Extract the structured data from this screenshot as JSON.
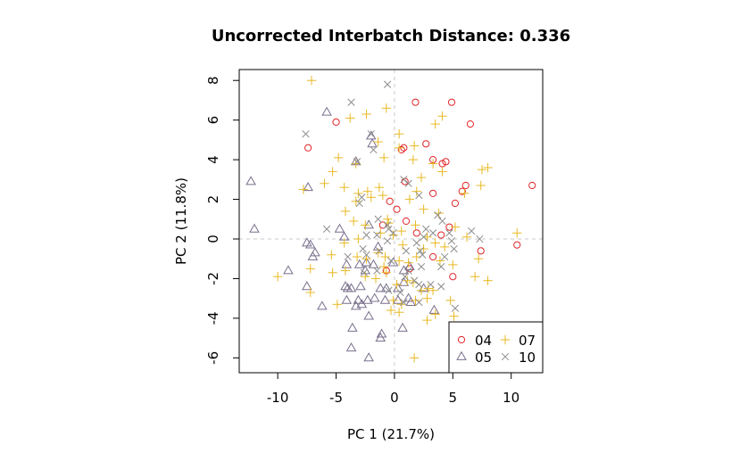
{
  "chart_data": {
    "type": "scatter",
    "title": "Uncorrected Interbatch Distance: 0.336",
    "xlabel": "PC 1 (21.7%)",
    "ylabel": "PC 2 (11.8%)",
    "xlim": [
      -13.3,
      12.7
    ],
    "ylim": [
      -6.75,
      8.55
    ],
    "xticks": [
      -10,
      -5,
      0,
      5,
      10
    ],
    "xtick_labels": [
      "-10",
      "-5",
      "0",
      "5",
      "10"
    ],
    "yticks": [
      -6,
      -4,
      -2,
      0,
      2,
      4,
      6,
      8
    ],
    "ytick_labels": [
      "-6",
      "-4",
      "-2",
      "0",
      "2",
      "4",
      "6",
      "8"
    ],
    "reference_lines": {
      "x": 0,
      "y": 0,
      "style": "dashed",
      "color": "#c8c8c8"
    },
    "legend_position": "bottom-right",
    "series": [
      {
        "name": "04",
        "marker": "circle",
        "color": "#e0242a",
        "points": [
          [
            1.8,
            6.9
          ],
          [
            4.9,
            6.9
          ],
          [
            6.5,
            5.8
          ],
          [
            -5.0,
            5.9
          ],
          [
            -7.4,
            4.6
          ],
          [
            2.7,
            4.8
          ],
          [
            0.6,
            4.5
          ],
          [
            0.8,
            4.6
          ],
          [
            3.3,
            4.0
          ],
          [
            4.1,
            3.8
          ],
          [
            4.4,
            3.9
          ],
          [
            0.9,
            2.9
          ],
          [
            3.3,
            2.3
          ],
          [
            6.1,
            2.7
          ],
          [
            5.2,
            1.8
          ],
          [
            5.8,
            2.4
          ],
          [
            11.8,
            2.7
          ],
          [
            -0.4,
            1.9
          ],
          [
            0.2,
            1.5
          ],
          [
            1.0,
            0.9
          ],
          [
            -1.0,
            0.7
          ],
          [
            4.7,
            0.6
          ],
          [
            1.9,
            0.3
          ],
          [
            4.0,
            0.2
          ],
          [
            10.5,
            -0.3
          ],
          [
            7.4,
            -0.6
          ],
          [
            3.3,
            -0.9
          ],
          [
            1.3,
            -1.5
          ],
          [
            5.0,
            -1.9
          ],
          [
            -0.7,
            -1.6
          ]
        ]
      },
      {
        "name": "05",
        "marker": "triangle",
        "color": "#7a6f8d",
        "points": [
          [
            -5.8,
            6.4
          ],
          [
            -12.3,
            2.9
          ],
          [
            -12.0,
            0.5
          ],
          [
            -2.0,
            5.2
          ],
          [
            -1.9,
            4.8
          ],
          [
            -3.3,
            3.9
          ],
          [
            -7.4,
            2.6
          ],
          [
            -2.2,
            0.7
          ],
          [
            -4.7,
            0.5
          ],
          [
            -4.3,
            0.1
          ],
          [
            -7.5,
            -0.2
          ],
          [
            -7.2,
            -0.3
          ],
          [
            -6.8,
            -0.7
          ],
          [
            -7.0,
            -0.9
          ],
          [
            -1.4,
            -0.4
          ],
          [
            -9.1,
            -1.6
          ],
          [
            -4.1,
            -1.3
          ],
          [
            -2.4,
            -1.2
          ],
          [
            -3.0,
            -1.3
          ],
          [
            -1.8,
            -1.3
          ],
          [
            -2.5,
            -1.6
          ],
          [
            -0.1,
            -1.2
          ],
          [
            0.8,
            -1.6
          ],
          [
            1.3,
            -1.4
          ],
          [
            -7.5,
            -2.4
          ],
          [
            -4.2,
            -2.4
          ],
          [
            -4.0,
            -2.5
          ],
          [
            -3.7,
            -2.5
          ],
          [
            -2.9,
            -2.4
          ],
          [
            -1.2,
            -2.5
          ],
          [
            -0.7,
            -2.5
          ],
          [
            0.3,
            -2.5
          ],
          [
            0.8,
            -2.2
          ],
          [
            2.5,
            -2.5
          ],
          [
            -4.1,
            -3.1
          ],
          [
            -3.1,
            -3.1
          ],
          [
            -2.3,
            -3.1
          ],
          [
            -1.7,
            -3.0
          ],
          [
            -0.8,
            -3.1
          ],
          [
            0.3,
            -3.1
          ],
          [
            1.2,
            -3.0
          ],
          [
            -6.2,
            -3.4
          ],
          [
            -3.3,
            -3.4
          ],
          [
            1.4,
            -3.2
          ],
          [
            3.4,
            -3.6
          ],
          [
            -2.8,
            -3.3
          ],
          [
            -2.2,
            -3.9
          ],
          [
            -1.1,
            -4.8
          ],
          [
            -1.2,
            -5.0
          ],
          [
            0.7,
            -4.5
          ],
          [
            -3.6,
            -4.5
          ],
          [
            -3.7,
            -5.5
          ],
          [
            -2.2,
            -6.0
          ]
        ]
      },
      {
        "name": "07",
        "marker": "plus",
        "color": "#e8b923",
        "points": [
          [
            -7.1,
            8.0
          ],
          [
            -3.8,
            6.1
          ],
          [
            -2.4,
            6.3
          ],
          [
            -0.7,
            6.6
          ],
          [
            4.1,
            6.2
          ],
          [
            3.5,
            5.8
          ],
          [
            0.4,
            5.3
          ],
          [
            -1.4,
            4.9
          ],
          [
            0.4,
            4.6
          ],
          [
            1.7,
            4.7
          ],
          [
            3.3,
            3.8
          ],
          [
            -0.9,
            4.1
          ],
          [
            -4.8,
            4.1
          ],
          [
            -3.3,
            3.8
          ],
          [
            1.6,
            4.0
          ],
          [
            -5.3,
            3.4
          ],
          [
            -6.0,
            2.8
          ],
          [
            -7.8,
            2.5
          ],
          [
            -4.3,
            2.6
          ],
          [
            -3.1,
            2.3
          ],
          [
            -2.3,
            2.4
          ],
          [
            -1.3,
            2.6
          ],
          [
            1.9,
            2.4
          ],
          [
            2.3,
            3.1
          ],
          [
            4.1,
            3.4
          ],
          [
            7.5,
            3.5
          ],
          [
            8.0,
            3.6
          ],
          [
            7.4,
            2.7
          ],
          [
            6.0,
            2.3
          ],
          [
            -4.2,
            1.4
          ],
          [
            -3.3,
            1.9
          ],
          [
            -2.0,
            2.1
          ],
          [
            -1.0,
            2.2
          ],
          [
            1.3,
            2.0
          ],
          [
            2.5,
            1.5
          ],
          [
            3.8,
            1.3
          ],
          [
            -0.6,
            1.0
          ],
          [
            -0.5,
            0.8
          ],
          [
            -3.5,
            0.9
          ],
          [
            -2.5,
            0.7
          ],
          [
            -1.2,
            0.3
          ],
          [
            0.6,
            0.4
          ],
          [
            1.8,
            0.7
          ],
          [
            3.5,
            -0.2
          ],
          [
            2.8,
            0.1
          ],
          [
            5.2,
            0.6
          ],
          [
            6.2,
            0.1
          ],
          [
            10.5,
            0.3
          ],
          [
            -0.1,
            0.2
          ],
          [
            -4.3,
            -0.2
          ],
          [
            -3.1,
            0.0
          ],
          [
            -1.4,
            -0.7
          ],
          [
            -0.8,
            -0.9
          ],
          [
            0.7,
            -0.3
          ],
          [
            1.9,
            -0.9
          ],
          [
            2.5,
            -0.5
          ],
          [
            4.3,
            -0.4
          ],
          [
            -5.4,
            -0.8
          ],
          [
            -3.2,
            -0.9
          ],
          [
            -2.4,
            -1.0
          ],
          [
            -0.9,
            -1.4
          ],
          [
            -0.7,
            -1.7
          ],
          [
            0.4,
            -1.1
          ],
          [
            1.2,
            -1.2
          ],
          [
            3.9,
            -1.1
          ],
          [
            5.0,
            -1.3
          ],
          [
            7.2,
            -1.0
          ],
          [
            -10.0,
            -1.9
          ],
          [
            -7.2,
            -1.5
          ],
          [
            -5.3,
            -1.7
          ],
          [
            -4.2,
            -1.6
          ],
          [
            -2.5,
            -1.9
          ],
          [
            -1.6,
            -2.0
          ],
          [
            0.2,
            -2.3
          ],
          [
            1.1,
            -2.1
          ],
          [
            1.6,
            -2.2
          ],
          [
            2.3,
            -2.6
          ],
          [
            2.9,
            -2.5
          ],
          [
            3.3,
            -2.6
          ],
          [
            2.8,
            -3.0
          ],
          [
            4.8,
            -3.1
          ],
          [
            6.9,
            -1.9
          ],
          [
            8.0,
            -2.1
          ],
          [
            -7.2,
            -2.7
          ],
          [
            -4.9,
            -3.3
          ],
          [
            -0.1,
            -3.1
          ],
          [
            0.6,
            -3.3
          ],
          [
            -0.3,
            -3.6
          ],
          [
            0.4,
            -3.7
          ],
          [
            1.8,
            -3.1
          ],
          [
            2.8,
            -4.1
          ],
          [
            3.5,
            -3.8
          ],
          [
            5.1,
            -3.9
          ],
          [
            1.7,
            -6.0
          ]
        ]
      },
      {
        "name": "10",
        "marker": "cross",
        "color": "#8c8c8c",
        "points": [
          [
            -0.6,
            7.8
          ],
          [
            -3.7,
            6.9
          ],
          [
            -7.6,
            5.3
          ],
          [
            -2.0,
            5.3
          ],
          [
            -1.8,
            4.5
          ],
          [
            -3.2,
            3.9
          ],
          [
            -2.8,
            2.1
          ],
          [
            0.8,
            3.0
          ],
          [
            1.2,
            2.8
          ],
          [
            2.1,
            2.2
          ],
          [
            -3.0,
            1.8
          ],
          [
            -1.4,
            1.0
          ],
          [
            3.7,
            1.2
          ],
          [
            4.1,
            0.9
          ],
          [
            -5.8,
            0.5
          ],
          [
            -0.6,
            0.7
          ],
          [
            -0.5,
            0.5
          ],
          [
            -0.1,
            0.3
          ],
          [
            2.7,
            0.5
          ],
          [
            2.5,
            0.1
          ],
          [
            3.3,
            0.3
          ],
          [
            4.7,
            0.3
          ],
          [
            -2.4,
            0.2
          ],
          [
            -1.5,
            0.2
          ],
          [
            6.6,
            0.4
          ],
          [
            7.3,
            0.0
          ],
          [
            -1.3,
            -0.6
          ],
          [
            -0.6,
            -0.1
          ],
          [
            1.9,
            -0.2
          ],
          [
            2.2,
            -0.6
          ],
          [
            4.9,
            -0.1
          ],
          [
            -2.7,
            -0.5
          ],
          [
            -4.0,
            -0.9
          ],
          [
            -2.4,
            -0.8
          ],
          [
            1.0,
            -0.6
          ],
          [
            2.4,
            -0.8
          ],
          [
            4.3,
            -0.9
          ],
          [
            5.1,
            -0.5
          ],
          [
            -0.3,
            -1.1
          ],
          [
            1.2,
            -1.6
          ],
          [
            2.3,
            -1.4
          ],
          [
            4.0,
            -1.4
          ],
          [
            -2.6,
            -1.7
          ],
          [
            -1.5,
            -1.6
          ],
          [
            0.9,
            -1.9
          ],
          [
            1.7,
            -2.1
          ],
          [
            2.1,
            -2.3
          ],
          [
            -0.5,
            -2.6
          ],
          [
            0.5,
            -2.7
          ],
          [
            3.1,
            -2.3
          ],
          [
            4.0,
            -2.4
          ],
          [
            0.8,
            -3.2
          ],
          [
            2.1,
            -3.2
          ],
          [
            5.2,
            -3.5
          ]
        ]
      }
    ]
  }
}
